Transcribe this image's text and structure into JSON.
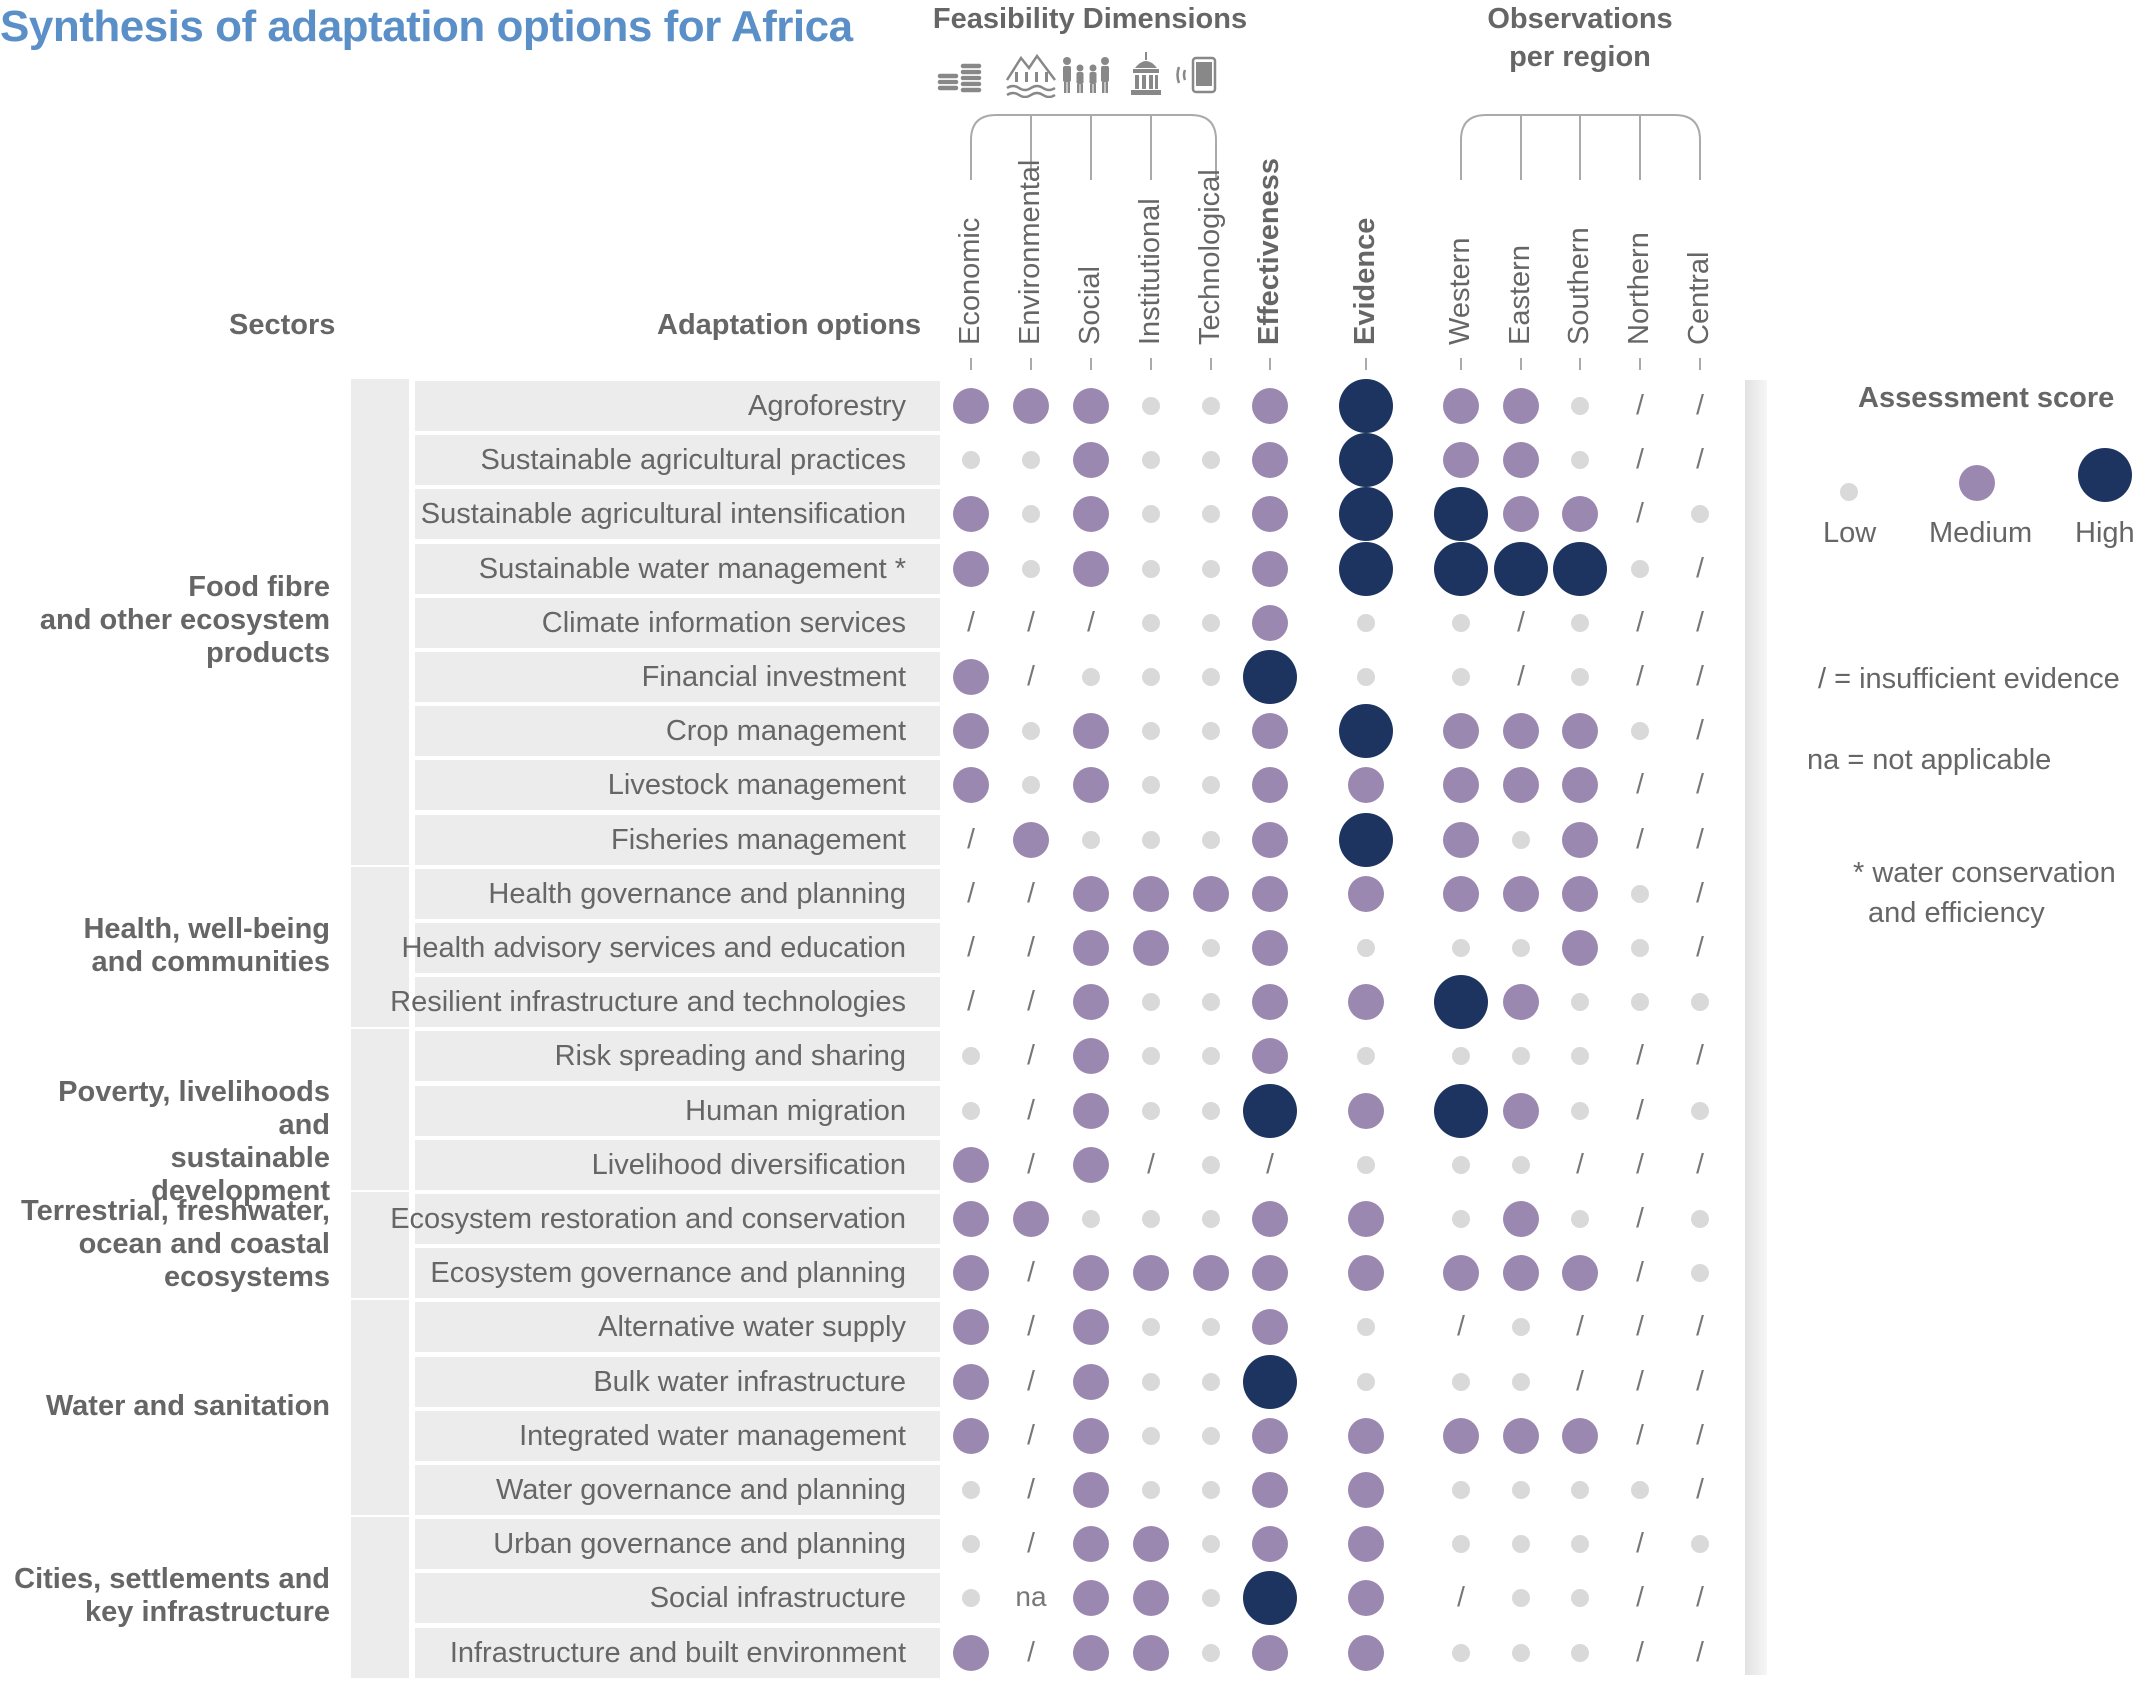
{
  "title": "Synthesis of adaptation options for Africa",
  "headers": {
    "sectors": "Sectors",
    "options": "Adaptation options",
    "feasibility": "Feasibility Dimensions",
    "observations": "Observations per region"
  },
  "icons": [
    "coins-icon",
    "landscape-icon",
    "people-icon",
    "institution-icon",
    "mobile-phone-icon"
  ],
  "columns": [
    "Economic",
    "Environmental",
    "Social",
    "Institutional",
    "Technological",
    "Effectiveness",
    "Evidence",
    "Western",
    "Eastern",
    "Southern",
    "Northern",
    "Central"
  ],
  "legend": {
    "title": "Assessment score",
    "low": "Low",
    "medium": "Medium",
    "high": "High",
    "insufficient": "/  = insufficient evidence",
    "na": "na = not applicable",
    "note_line1": "* water conservation",
    "note_line2": "and efficiency"
  },
  "colors": {
    "low": "#d9d9d9",
    "medium": "#9b88b0",
    "high": "#1d3461",
    "title": "#5b8fc8",
    "text": "#666666"
  },
  "sectors": [
    {
      "label": "Food fibre and other ecosystem products",
      "lines": [
        "Food fibre",
        "and other ecosystem",
        "products"
      ]
    },
    {
      "label": "Health, well-being and communities",
      "lines": [
        "Health, well-being",
        "and communities"
      ]
    },
    {
      "label": "Poverty, livelihoods and sustainable development",
      "lines": [
        "Poverty, livelihoods and",
        "sustainable development"
      ]
    },
    {
      "label": "Terrestrial, freshwater, ocean and coastal ecosystems",
      "lines": [
        "Terrestrial,  freshwater,",
        "ocean and coastal",
        "ecosystems"
      ]
    },
    {
      "label": "Water and sanitation",
      "lines": [
        "Water and sanitation"
      ]
    },
    {
      "label": "Cities, settlements and key infrastructure",
      "lines": [
        "Cities, settlements and",
        "key infrastructure"
      ]
    }
  ],
  "rows": [
    {
      "sector": 0,
      "label": "Agroforestry",
      "scores": [
        "M",
        "M",
        "M",
        "L",
        "L",
        "M",
        "H",
        "M",
        "M",
        "L",
        "/",
        "/"
      ]
    },
    {
      "sector": 0,
      "label": "Sustainable agricultural practices",
      "scores": [
        "L",
        "L",
        "M",
        "L",
        "L",
        "M",
        "H",
        "M",
        "M",
        "L",
        "/",
        "/"
      ]
    },
    {
      "sector": 0,
      "label": "Sustainable agricultural intensification",
      "scores": [
        "M",
        "L",
        "M",
        "L",
        "L",
        "M",
        "H",
        "H",
        "M",
        "M",
        "/",
        "L"
      ]
    },
    {
      "sector": 0,
      "label": "Sustainable water management *",
      "scores": [
        "M",
        "L",
        "M",
        "L",
        "L",
        "M",
        "H",
        "H",
        "H",
        "H",
        "L",
        "/"
      ]
    },
    {
      "sector": 0,
      "label": "Climate information services",
      "scores": [
        "/",
        "/",
        "/",
        "L",
        "L",
        "M",
        "L",
        "L",
        "/",
        "L",
        "/",
        "/"
      ]
    },
    {
      "sector": 0,
      "label": "Financial investment",
      "scores": [
        "M",
        "/",
        "L",
        "L",
        "L",
        "H",
        "L",
        "L",
        "/",
        "L",
        "/",
        "/"
      ]
    },
    {
      "sector": 0,
      "label": "Crop management",
      "scores": [
        "M",
        "L",
        "M",
        "L",
        "L",
        "M",
        "H",
        "M",
        "M",
        "M",
        "L",
        "/"
      ]
    },
    {
      "sector": 0,
      "label": "Livestock management",
      "scores": [
        "M",
        "L",
        "M",
        "L",
        "L",
        "M",
        "M",
        "M",
        "M",
        "M",
        "/",
        "/"
      ]
    },
    {
      "sector": 0,
      "label": "Fisheries management",
      "scores": [
        "/",
        "M",
        "L",
        "L",
        "L",
        "M",
        "H",
        "M",
        "L",
        "M",
        "/",
        "/"
      ]
    },
    {
      "sector": 1,
      "label": "Health governance and planning",
      "scores": [
        "/",
        "/",
        "M",
        "M",
        "M",
        "M",
        "M",
        "M",
        "M",
        "M",
        "L",
        "/"
      ]
    },
    {
      "sector": 1,
      "label": "Health advisory services and education",
      "scores": [
        "/",
        "/",
        "M",
        "M",
        "L",
        "M",
        "L",
        "L",
        "L",
        "M",
        "L",
        "/"
      ]
    },
    {
      "sector": 1,
      "label": "Resilient infrastructure and technologies",
      "scores": [
        "/",
        "/",
        "M",
        "L",
        "L",
        "M",
        "M",
        "H",
        "M",
        "L",
        "L",
        "L"
      ]
    },
    {
      "sector": 2,
      "label": "Risk spreading and sharing",
      "scores": [
        "L",
        "/",
        "M",
        "L",
        "L",
        "M",
        "L",
        "L",
        "L",
        "L",
        "/",
        "/"
      ]
    },
    {
      "sector": 2,
      "label": "Human migration",
      "scores": [
        "L",
        "/",
        "M",
        "L",
        "L",
        "H",
        "M",
        "H",
        "M",
        "L",
        "/",
        "L"
      ]
    },
    {
      "sector": 2,
      "label": "Livelihood diversification",
      "scores": [
        "M",
        "/",
        "M",
        "/",
        "L",
        "/",
        "L",
        "L",
        "L",
        "/",
        "/",
        "/"
      ]
    },
    {
      "sector": 3,
      "label": "Ecosystem restoration and conservation",
      "scores": [
        "M",
        "M",
        "L",
        "L",
        "L",
        "M",
        "M",
        "L",
        "M",
        "L",
        "/",
        "L"
      ]
    },
    {
      "sector": 3,
      "label": "Ecosystem governance and planning",
      "scores": [
        "M",
        "/",
        "M",
        "M",
        "M",
        "M",
        "M",
        "M",
        "M",
        "M",
        "/",
        "L"
      ]
    },
    {
      "sector": 4,
      "label": "Alternative water supply",
      "scores": [
        "M",
        "/",
        "M",
        "L",
        "L",
        "M",
        "L",
        "/",
        "L",
        "/",
        "/",
        "/"
      ]
    },
    {
      "sector": 4,
      "label": "Bulk water infrastructure",
      "scores": [
        "M",
        "/",
        "M",
        "L",
        "L",
        "H",
        "L",
        "L",
        "L",
        "/",
        "/",
        "/"
      ]
    },
    {
      "sector": 4,
      "label": "Integrated water management",
      "scores": [
        "M",
        "/",
        "M",
        "L",
        "L",
        "M",
        "M",
        "M",
        "M",
        "M",
        "/",
        "/"
      ]
    },
    {
      "sector": 4,
      "label": "Water governance and planning",
      "scores": [
        "L",
        "/",
        "M",
        "L",
        "L",
        "M",
        "M",
        "L",
        "L",
        "L",
        "L",
        "/"
      ]
    },
    {
      "sector": 5,
      "label": "Urban governance and planning",
      "scores": [
        "L",
        "/",
        "M",
        "M",
        "L",
        "M",
        "M",
        "L",
        "L",
        "L",
        "/",
        "L"
      ]
    },
    {
      "sector": 5,
      "label": "Social infrastructure",
      "scores": [
        "L",
        "na",
        "M",
        "M",
        "L",
        "H",
        "M",
        "/",
        "L",
        "L",
        "/",
        "/"
      ]
    },
    {
      "sector": 5,
      "label": "Infrastructure and built environment",
      "scores": [
        "M",
        "/",
        "M",
        "M",
        "L",
        "M",
        "M",
        "L",
        "L",
        "L",
        "/",
        "/"
      ]
    }
  ]
}
